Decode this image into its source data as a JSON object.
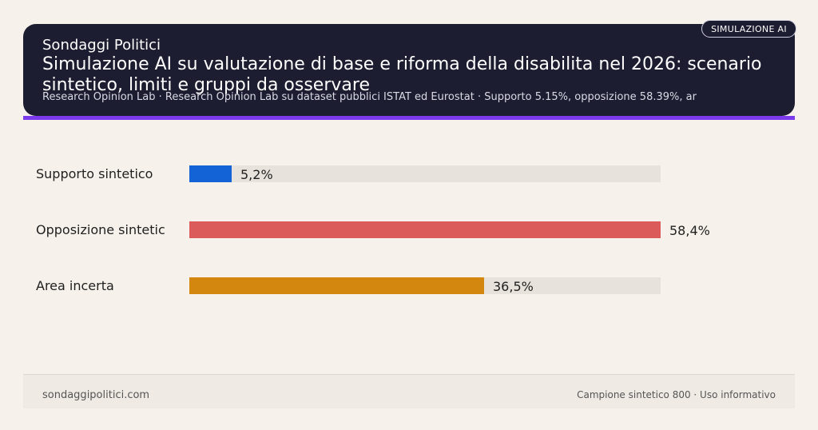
{
  "header": {
    "brand": "Sondaggi Politici",
    "title": "Simulazione AI su valutazione di base e riforma della disabilita nel 2026: scenario sintetico, limiti e gruppi da osservare",
    "subtitle": "Research Opinion Lab · Research Opinion Lab su dataset pubblici ISTAT ed Eurostat · Supporto 5.15%, opposizione 58.39%, ar",
    "badge": "SIMULAZIONE AI"
  },
  "chart_data": {
    "type": "bar",
    "orientation": "horizontal",
    "categories": [
      "Supporto sintetico",
      "Opposizione sintetic",
      "Area incerta"
    ],
    "values": [
      5.2,
      58.4,
      36.5
    ],
    "value_labels": [
      "5,2%",
      "58,4%",
      "36,5%"
    ],
    "colors": [
      "#1463d6",
      "#db5a5a",
      "#d4870f"
    ],
    "track_color": "#e8e2dc",
    "xlim": [
      0,
      58.4
    ]
  },
  "footer": {
    "site": "sondaggipolitici.com",
    "note": "Campione sintetico 800 · Uso informativo"
  }
}
